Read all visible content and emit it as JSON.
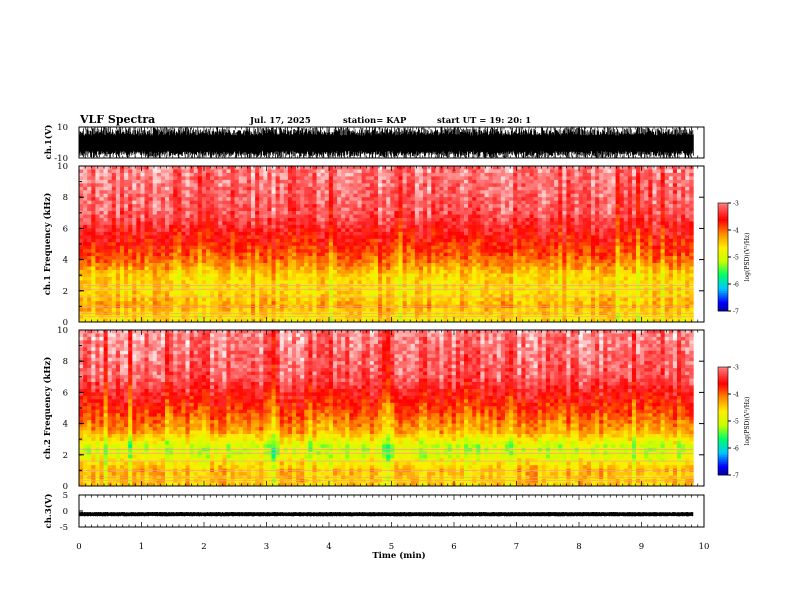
{
  "header": {
    "title": "VLF Spectra",
    "date": "Jul. 17, 2025",
    "station": "station= KAP",
    "start_ut": "start UT =   19: 20: 1"
  },
  "colors": {
    "background": "#ffffff",
    "axis": "#000000",
    "colormap": [
      "#000066",
      "#0000ff",
      "#00c8ff",
      "#00ff66",
      "#c8ff00",
      "#ffee00",
      "#ff8800",
      "#ff0000",
      "#ff6666",
      "#ffffff"
    ]
  },
  "chart_data": [
    {
      "type": "line",
      "name": "ch1-waveform",
      "ylabel": "ch.1(V)",
      "ylim": [
        -10,
        10
      ],
      "yticks": [
        "10",
        "-10"
      ],
      "xlim": [
        0,
        10
      ],
      "data_end_min": 9.83,
      "description_of_signal": "dense waveform saturating roughly between -10 and 10 V",
      "amplitude_range_V": [
        -10,
        10
      ]
    },
    {
      "type": "heatmap",
      "name": "ch1-spectrogram",
      "ylabel": "ch.1 Frequency (kHz)",
      "ylim": [
        0,
        10
      ],
      "yticks": [
        "0",
        "2",
        "4",
        "6",
        "8",
        "10"
      ],
      "xlim": [
        0,
        10
      ],
      "data_end_min": 9.83,
      "colorbar": {
        "label": "log(PSD)(V²/Hz)",
        "range": [
          -7,
          -3
        ],
        "ticks": [
          "-3",
          "-4",
          "-5",
          "-6",
          "-7"
        ]
      },
      "band_profile_log_psd": [
        {
          "f_khz": 0.3,
          "level": -4.6
        },
        {
          "f_khz": 1.0,
          "level": -4.3
        },
        {
          "f_khz": 2.0,
          "level": -4.6
        },
        {
          "f_khz": 3.0,
          "level": -4.5
        },
        {
          "f_khz": 4.0,
          "level": -4.0
        },
        {
          "f_khz": 5.0,
          "level": -3.7
        },
        {
          "f_khz": 7.0,
          "level": -3.2
        },
        {
          "f_khz": 10.0,
          "level": -3.0
        }
      ]
    },
    {
      "type": "heatmap",
      "name": "ch2-spectrogram",
      "ylabel": "ch.2 Frequency (kHz)",
      "ylim": [
        0,
        10
      ],
      "yticks": [
        "0",
        "2",
        "4",
        "6",
        "8",
        "10"
      ],
      "xlim": [
        0,
        10
      ],
      "data_end_min": 9.83,
      "colorbar": {
        "label": "log(PSD)(V²/Hz)",
        "range": [
          -7,
          -3
        ],
        "ticks": [
          "-3",
          "-4",
          "-5",
          "-6",
          "-7"
        ]
      },
      "band_profile_log_psd": [
        {
          "f_khz": 0.3,
          "level": -4.5
        },
        {
          "f_khz": 1.0,
          "level": -4.4
        },
        {
          "f_khz": 2.0,
          "level": -5.0
        },
        {
          "f_khz": 2.5,
          "level": -5.1
        },
        {
          "f_khz": 3.5,
          "level": -4.3
        },
        {
          "f_khz": 5.0,
          "level": -3.8
        },
        {
          "f_khz": 7.0,
          "level": -3.2
        },
        {
          "f_khz": 10.0,
          "level": -3.0
        }
      ]
    },
    {
      "type": "line",
      "name": "ch3-waveform",
      "ylabel": "ch.3(V)",
      "ylim": [
        -5,
        5
      ],
      "yticks": [
        "5",
        "0",
        "-5"
      ],
      "xlim": [
        0,
        10
      ],
      "data_end_min": 9.83,
      "amplitude_range_V": [
        -1.5,
        -0.5
      ]
    }
  ],
  "xaxis": {
    "label": "Time (min)",
    "ticks": [
      "0",
      "1",
      "2",
      "3",
      "4",
      "5",
      "6",
      "7",
      "8",
      "9",
      "10"
    ]
  }
}
